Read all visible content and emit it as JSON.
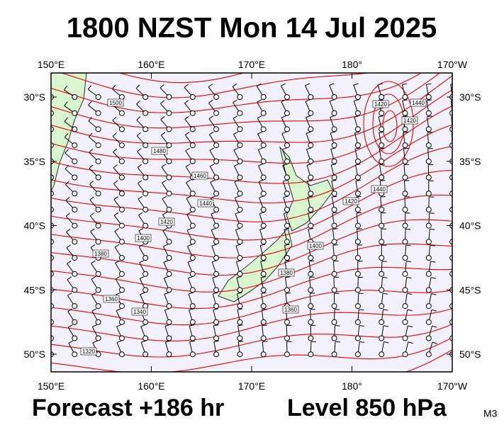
{
  "title": "1800 NZST Mon 14 Jul 2025",
  "map": {
    "longitude_ticks": [
      {
        "value": 150,
        "label": "150°E"
      },
      {
        "value": 160,
        "label": "160°E"
      },
      {
        "value": 170,
        "label": "170°E"
      },
      {
        "value": 180,
        "label": "180°"
      },
      {
        "value": 190,
        "label": "170°W"
      }
    ],
    "latitude_ticks": [
      {
        "value": -30,
        "label": "30°S"
      },
      {
        "value": -35,
        "label": "35°S"
      },
      {
        "value": -40,
        "label": "40°S"
      },
      {
        "value": -45,
        "label": "45°S"
      },
      {
        "value": -50,
        "label": "50°S"
      }
    ],
    "contour_labels": [
      "1500",
      "1480",
      "1460",
      "1440",
      "1420",
      "1400",
      "1380",
      "1360",
      "1340",
      "1320",
      "1420",
      "1400",
      "1380",
      "1360",
      "1420",
      "1440",
      "1440",
      "1420"
    ]
  },
  "footer": {
    "forecast": "Forecast +186 hr",
    "level": "Level 850 hPa",
    "model": "M3"
  }
}
